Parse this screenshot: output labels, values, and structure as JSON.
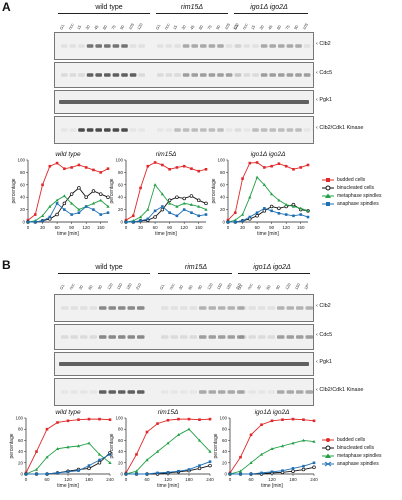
{
  "panels": [
    {
      "letter": "A",
      "groups": [
        "wild type",
        "rim15Δ",
        "igo1Δ igo2Δ"
      ],
      "lane_labels": [
        "G1",
        "noc",
        "15",
        "30",
        "45",
        "60",
        "75",
        "90",
        "105",
        "120"
      ],
      "blots": [
        "Clb2",
        "Cdc5",
        "Pgk1",
        "Clb2/Cdk1 Kinase"
      ],
      "legend": [
        "budded cells",
        "binucleated cells",
        "metaphase spindles",
        "anaphase spindles"
      ],
      "ylabel": "percentage",
      "xlabel": "time [min]",
      "chart_titles": [
        "wild type",
        "rim15Δ",
        "igo1Δ igo2Δ"
      ],
      "x_ticks": [
        "0",
        "30",
        "60",
        "90",
        "120",
        "150"
      ],
      "y_ticks": [
        "0",
        "20",
        "40",
        "60",
        "80",
        "100"
      ]
    },
    {
      "letter": "B",
      "groups": [
        "wild type",
        "rim15Δ",
        "igo1Δ igo2Δ"
      ],
      "lane_labels": [
        "G1",
        "noc",
        "30",
        "60",
        "90",
        "120",
        "150",
        "180",
        "210"
      ],
      "blots": [
        "Clb2",
        "Cdc5",
        "Pgk1",
        "Clb2/Cdk1 Kinase"
      ],
      "legend": [
        "budded cells",
        "binucleated cells",
        "metaphase spindles",
        "anaphase spindles"
      ],
      "ylabel": "percentage",
      "xlabel": "time [min]",
      "chart_titles": [
        "wild type",
        "rim15Δ",
        "igo1Δ igo2Δ"
      ],
      "x_ticks": [
        "0",
        "60",
        "120",
        "180",
        "240"
      ],
      "y_ticks": [
        "0",
        "20",
        "40",
        "60",
        "80",
        "100"
      ]
    }
  ],
  "colors": {
    "budded": "#e0282a",
    "binucleated": "#111111",
    "metaphase": "#22a046",
    "anaphase": "#1f6fb5"
  },
  "chart_data": [
    {
      "type": "line",
      "title": "wild type",
      "xlabel": "time [min]",
      "ylabel": "percentage",
      "xlim": [
        0,
        165
      ],
      "ylim": [
        0,
        100
      ],
      "x": [
        0,
        15,
        30,
        45,
        60,
        75,
        90,
        105,
        120,
        135,
        150,
        165
      ],
      "series": [
        {
          "name": "budded cells",
          "values": [
            3,
            12,
            60,
            90,
            95,
            86,
            88,
            92,
            88,
            84,
            80,
            86
          ]
        },
        {
          "name": "binucleated cells",
          "values": [
            0,
            0,
            2,
            5,
            12,
            30,
            45,
            55,
            40,
            50,
            45,
            40
          ]
        },
        {
          "name": "metaphase spindles",
          "values": [
            0,
            2,
            10,
            25,
            35,
            42,
            30,
            20,
            25,
            30,
            35,
            25
          ]
        },
        {
          "name": "anaphase spindles",
          "values": [
            0,
            0,
            2,
            8,
            30,
            20,
            12,
            15,
            25,
            20,
            12,
            15
          ]
        }
      ]
    },
    {
      "type": "line",
      "title": "rim15Δ",
      "xlabel": "time [min]",
      "ylabel": "percentage",
      "xlim": [
        0,
        165
      ],
      "ylim": [
        0,
        100
      ],
      "x": [
        0,
        15,
        30,
        45,
        60,
        75,
        90,
        105,
        120,
        135,
        150,
        165
      ],
      "series": [
        {
          "name": "budded cells",
          "values": [
            3,
            10,
            55,
            90,
            96,
            92,
            85,
            88,
            90,
            86,
            82,
            85
          ]
        },
        {
          "name": "binucleated cells",
          "values": [
            0,
            0,
            2,
            3,
            8,
            20,
            35,
            40,
            38,
            42,
            35,
            30
          ]
        },
        {
          "name": "metaphase spindles",
          "values": [
            0,
            2,
            8,
            20,
            60,
            45,
            30,
            25,
            30,
            28,
            25,
            20
          ]
        },
        {
          "name": "anaphase spindles",
          "values": [
            0,
            0,
            2,
            5,
            18,
            25,
            15,
            10,
            20,
            15,
            10,
            12
          ]
        }
      ]
    },
    {
      "type": "line",
      "title": "igo1Δ igo2Δ",
      "xlabel": "time [min]",
      "ylabel": "percentage",
      "xlim": [
        0,
        165
      ],
      "ylim": [
        0,
        100
      ],
      "x": [
        0,
        15,
        30,
        45,
        60,
        75,
        90,
        105,
        120,
        135,
        150,
        165
      ],
      "series": [
        {
          "name": "budded cells",
          "values": [
            3,
            15,
            70,
            95,
            96,
            88,
            90,
            94,
            90,
            85,
            88,
            92
          ]
        },
        {
          "name": "binucleated cells",
          "values": [
            0,
            0,
            2,
            5,
            10,
            18,
            25,
            22,
            25,
            28,
            20,
            18
          ]
        },
        {
          "name": "metaphase spindles",
          "values": [
            0,
            3,
            12,
            40,
            72,
            60,
            45,
            35,
            28,
            25,
            22,
            18
          ]
        },
        {
          "name": "anaphase spindles",
          "values": [
            0,
            0,
            2,
            8,
            15,
            22,
            18,
            14,
            12,
            10,
            12,
            8
          ]
        }
      ]
    },
    {
      "type": "line",
      "title": "wild type",
      "xlabel": "time [min]",
      "ylabel": "percentage",
      "xlim": [
        0,
        240
      ],
      "ylim": [
        0,
        100
      ],
      "x": [
        0,
        30,
        60,
        90,
        120,
        150,
        180,
        210,
        240
      ],
      "series": [
        {
          "name": "budded cells",
          "values": [
            2,
            40,
            80,
            92,
            95,
            97,
            98,
            98,
            97
          ]
        },
        {
          "name": "binucleated cells",
          "values": [
            0,
            0,
            0,
            2,
            5,
            8,
            10,
            20,
            38
          ]
        },
        {
          "name": "metaphase spindles",
          "values": [
            0,
            8,
            30,
            45,
            48,
            50,
            55,
            35,
            20
          ]
        },
        {
          "name": "anaphase spindles",
          "values": [
            0,
            0,
            0,
            2,
            4,
            6,
            15,
            25,
            35
          ]
        }
      ]
    },
    {
      "type": "line",
      "title": "rim15Δ",
      "xlabel": "time [min]",
      "ylabel": "percentage",
      "xlim": [
        0,
        240
      ],
      "ylim": [
        0,
        100
      ],
      "x": [
        0,
        30,
        60,
        90,
        120,
        150,
        180,
        210,
        240
      ],
      "series": [
        {
          "name": "budded cells",
          "values": [
            2,
            35,
            75,
            90,
            96,
            98,
            98,
            97,
            98
          ]
        },
        {
          "name": "binucleated cells",
          "values": [
            0,
            0,
            0,
            0,
            2,
            4,
            6,
            10,
            15
          ]
        },
        {
          "name": "metaphase spindles",
          "values": [
            0,
            5,
            25,
            40,
            55,
            70,
            80,
            60,
            40
          ]
        },
        {
          "name": "anaphase spindles",
          "values": [
            0,
            0,
            0,
            2,
            3,
            5,
            8,
            15,
            22
          ]
        }
      ]
    },
    {
      "type": "line",
      "title": "igo1Δ igo2Δ",
      "xlabel": "time [min]",
      "ylabel": "percentage",
      "xlim": [
        0,
        240
      ],
      "ylim": [
        0,
        100
      ],
      "x": [
        0,
        30,
        60,
        90,
        120,
        150,
        180,
        210,
        240
      ],
      "series": [
        {
          "name": "budded cells",
          "values": [
            2,
            30,
            70,
            88,
            95,
            97,
            98,
            97,
            95
          ]
        },
        {
          "name": "binucleated cells",
          "values": [
            0,
            0,
            0,
            0,
            2,
            3,
            5,
            8,
            12
          ]
        },
        {
          "name": "metaphase spindles",
          "values": [
            0,
            5,
            20,
            35,
            45,
            50,
            55,
            60,
            58
          ]
        },
        {
          "name": "anaphase spindles",
          "values": [
            0,
            0,
            0,
            2,
            4,
            6,
            10,
            14,
            20
          ]
        }
      ]
    }
  ]
}
